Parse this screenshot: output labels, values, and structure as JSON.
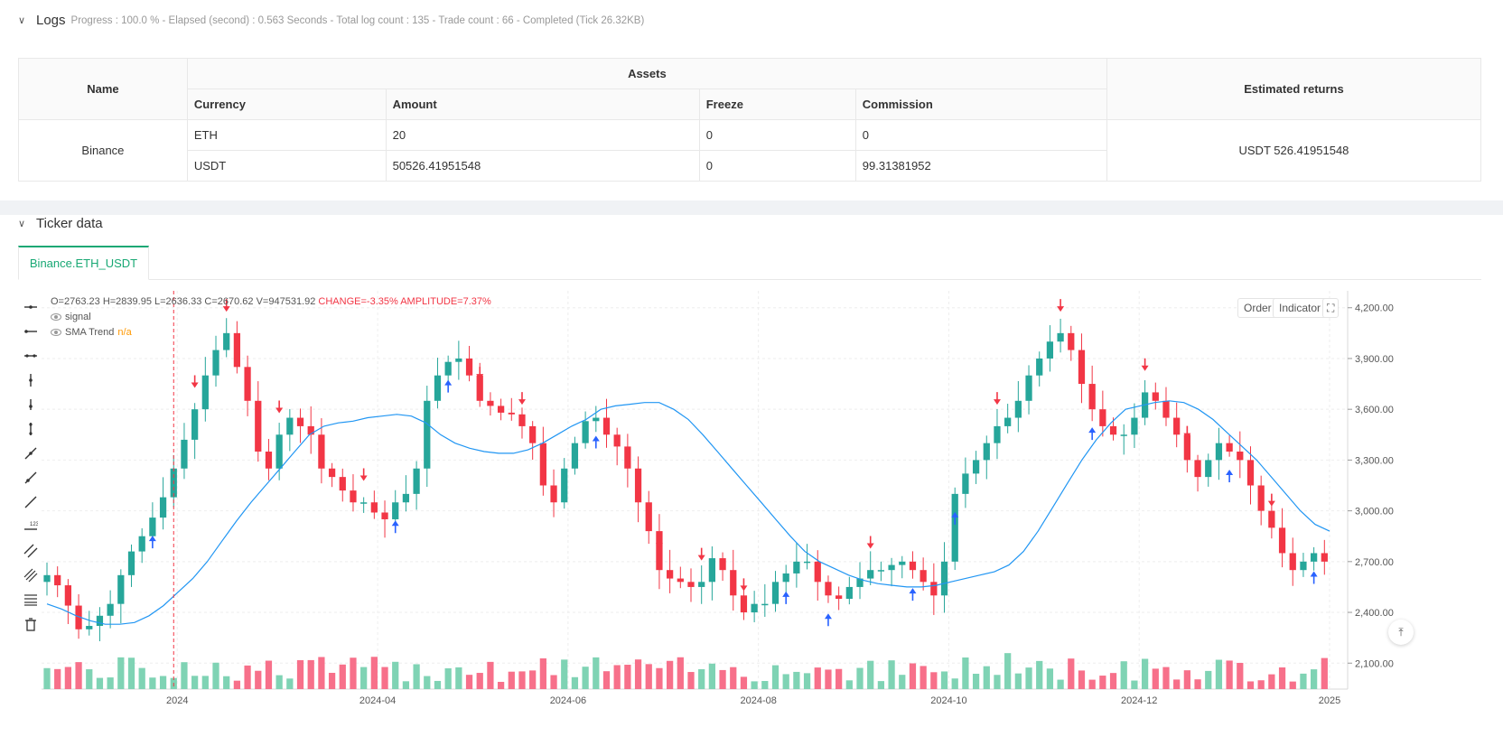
{
  "logs": {
    "title": "Logs",
    "meta": "Progress : 100.0 % - Elapsed (second) : 0.563  Seconds - Total log count : 135 - Trade count : 66 - Completed (Tick 26.32KB)"
  },
  "assets_table": {
    "h_name": "Name",
    "h_assets": "Assets",
    "h_returns": "Estimated returns",
    "h_currency": "Currency",
    "h_amount": "Amount",
    "h_freeze": "Freeze",
    "h_commission": "Commission",
    "exchange": "Binance",
    "returns": "USDT 526.41951548",
    "rows": [
      {
        "currency": "ETH",
        "amount": "20",
        "freeze": "0",
        "commission": "0"
      },
      {
        "currency": "USDT",
        "amount": "50526.41951548",
        "freeze": "0",
        "commission": "99.31381952"
      }
    ]
  },
  "ticker": {
    "title": "Ticker data",
    "tab": "Binance.ETH_USDT",
    "order_button": "Order",
    "indicator_button": "Indicator",
    "ohlc": {
      "o": "O=2763.23",
      "h": "H=2839.95",
      "l": "L=2636.33",
      "c": "C=2670.62",
      "v": "V=947531.92",
      "change": "CHANGE=-3.35%",
      "amplitude": "AMPLITUDE=7.37%"
    },
    "legend_signal": "signal",
    "legend_sma": "SMA Trend",
    "legend_sma_value": "n/a"
  },
  "colors": {
    "up": "#26a69a",
    "down": "#f23645",
    "up_vol": "#7fd3b4",
    "down_vol": "#f7708a",
    "sma": "#2196f3",
    "buy": "#2962ff",
    "sell": "#f23645",
    "signal": "#d500f9",
    "accent": "#18a874"
  },
  "icons": [
    "horizontal-line-icon",
    "horizontal-ray-icon",
    "extended-line-icon",
    "vertical-line-icon",
    "vertical-segment-icon",
    "vertical-ray-icon",
    "trend-line-icon",
    "ray-icon",
    "segment-icon",
    "price-label-icon",
    "parallel-channel-icon",
    "pitchfork-icon",
    "fib-icon",
    "trash-icon"
  ],
  "chart_data": {
    "type": "candlestick",
    "x_ticks": [
      "2024",
      "2024-04",
      "2024-06",
      "2024-08",
      "2024-10",
      "2024-12",
      "2025"
    ],
    "y_ticks": [
      "4,200.00",
      "3,900.00",
      "3,600.00",
      "3,300.00",
      "3,000.00",
      "2,700.00",
      "2,400.00",
      "2,100.00"
    ],
    "ylim": [
      2000,
      4300
    ],
    "series": [
      {
        "name": "SMA Trend",
        "type": "line"
      },
      {
        "name": "signal",
        "type": "markers"
      }
    ],
    "price_path": [
      2620,
      2560,
      2440,
      2300,
      2320,
      2380,
      2450,
      2620,
      2760,
      2850,
      2960,
      3080,
      3250,
      3420,
      3600,
      3800,
      3950,
      4050,
      3850,
      3650,
      3350,
      3250,
      3450,
      3550,
      3500,
      3450,
      3250,
      3200,
      3120,
      3050,
      3050,
      2990,
      2950,
      3050,
      3100,
      3250,
      3650,
      3800,
      3880,
      3900,
      3800,
      3650,
      3620,
      3580,
      3570,
      3500,
      3400,
      3150,
      3050,
      3250,
      3400,
      3530,
      3550,
      3450,
      3380,
      3250,
      3050,
      2880,
      2650,
      2600,
      2580,
      2550,
      2580,
      2720,
      2650,
      2500,
      2400,
      2450,
      2450,
      2580,
      2630,
      2700,
      2700,
      2580,
      2500,
      2480,
      2550,
      2600,
      2650,
      2650,
      2680,
      2700,
      2650,
      2580,
      2500,
      2700,
      3100,
      3220,
      3300,
      3400,
      3500,
      3550,
      3650,
      3800,
      3900,
      4000,
      4050,
      3950,
      3750,
      3600,
      3500,
      3450,
      3450,
      3550,
      3700,
      3650,
      3550,
      3450,
      3300,
      3200,
      3300,
      3400,
      3350,
      3300,
      3150,
      3000,
      2900,
      2750,
      2650,
      2700,
      2750,
      2700
    ],
    "sma_path": [
      2450,
      2420,
      2380,
      2350,
      2330,
      2330,
      2340,
      2380,
      2440,
      2520,
      2600,
      2700,
      2820,
      2940,
      3050,
      3150,
      3250,
      3350,
      3450,
      3500,
      3520,
      3530,
      3550,
      3560,
      3570,
      3560,
      3520,
      3450,
      3400,
      3370,
      3350,
      3340,
      3340,
      3360,
      3400,
      3450,
      3500,
      3540,
      3600,
      3620,
      3630,
      3640,
      3640,
      3600,
      3540,
      3450,
      3350,
      3250,
      3150,
      3050,
      2950,
      2850,
      2760,
      2700,
      2660,
      2620,
      2590,
      2570,
      2560,
      2550,
      2550,
      2560,
      2580,
      2600,
      2620,
      2640,
      2680,
      2760,
      2880,
      3020,
      3160,
      3300,
      3420,
      3520,
      3600,
      3620,
      3640,
      3650,
      3640,
      3600,
      3540,
      3460,
      3380,
      3300,
      3200,
      3100,
      3000,
      2920,
      2880
    ]
  }
}
